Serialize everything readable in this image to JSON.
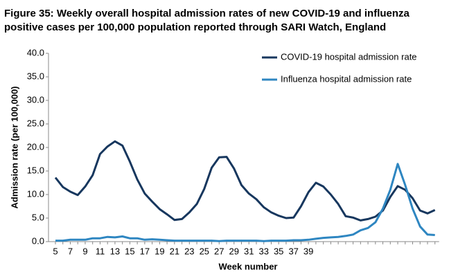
{
  "chart_data": {
    "type": "line",
    "title": [
      "Figure 35: Weekly overall hospital admission rates of new COVID-19 and influenza",
      "positive cases per 100,000 population reported through SARI Watch, England"
    ],
    "x_label": "Week number",
    "y_label": "Admission rate (per 100,000)",
    "categories": [
      5,
      null,
      7,
      null,
      9,
      null,
      11,
      null,
      13,
      null,
      15,
      null,
      17,
      null,
      19,
      null,
      21,
      null,
      23,
      null,
      25,
      null,
      27,
      null,
      29,
      null,
      31,
      null,
      33,
      null,
      35,
      null,
      37,
      null,
      39,
      null,
      null,
      null,
      null,
      null,
      null,
      null,
      null,
      null,
      null,
      null,
      null,
      null,
      null,
      null,
      null,
      null
    ],
    "series": [
      {
        "name": "COVID-19 hospital admission rate",
        "color": "#17375e",
        "values": [
          13.6,
          11.6,
          10.6,
          9.9,
          11.7,
          14.1,
          18.6,
          20.2,
          21.3,
          20.4,
          17.0,
          13.2,
          10.2,
          8.5,
          6.9,
          5.8,
          4.6,
          4.8,
          6.2,
          8.0,
          11.2,
          15.7,
          17.9,
          18.0,
          15.5,
          12.0,
          10.2,
          9.0,
          7.3,
          6.2,
          5.5,
          5.0,
          5.1,
          7.5,
          10.5,
          12.5,
          11.7,
          10.0,
          8.0,
          5.4,
          5.1,
          4.5,
          4.8,
          5.3,
          6.6,
          9.5,
          11.8,
          11.0,
          9.2,
          6.6,
          6.0,
          6.7
        ]
      },
      {
        "name": "Influenza hospital admission rate",
        "color": "#2e86c1",
        "values": [
          0.2,
          0.2,
          0.4,
          0.4,
          0.4,
          0.7,
          0.7,
          1.0,
          0.9,
          1.1,
          0.7,
          0.7,
          0.4,
          0.5,
          0.4,
          0.3,
          0.2,
          0.2,
          0.2,
          0.2,
          0.2,
          0.2,
          0.1,
          0.2,
          0.2,
          0.2,
          0.2,
          0.2,
          0.1,
          0.2,
          0.2,
          0.2,
          0.3,
          0.3,
          0.4,
          0.6,
          0.8,
          0.9,
          1.0,
          1.2,
          1.5,
          2.4,
          2.9,
          4.1,
          7.0,
          11.0,
          16.5,
          12.0,
          7.0,
          3.2,
          1.5,
          1.4
        ]
      }
    ],
    "ylim": [
      0,
      40
    ],
    "yticks": [
      {
        "value": 0,
        "label": "0.0"
      },
      {
        "value": 5,
        "label": "5.0"
      },
      {
        "value": 10,
        "label": "10.0"
      },
      {
        "value": 15,
        "label": "15.0"
      },
      {
        "value": 20,
        "label": "20.0"
      },
      {
        "value": 25,
        "label": "25.0"
      },
      {
        "value": 30,
        "label": "30.0"
      },
      {
        "value": 35,
        "label": "35.0"
      },
      {
        "value": 40,
        "label": "40.0"
      }
    ],
    "grid": false,
    "legend": "upper right"
  }
}
